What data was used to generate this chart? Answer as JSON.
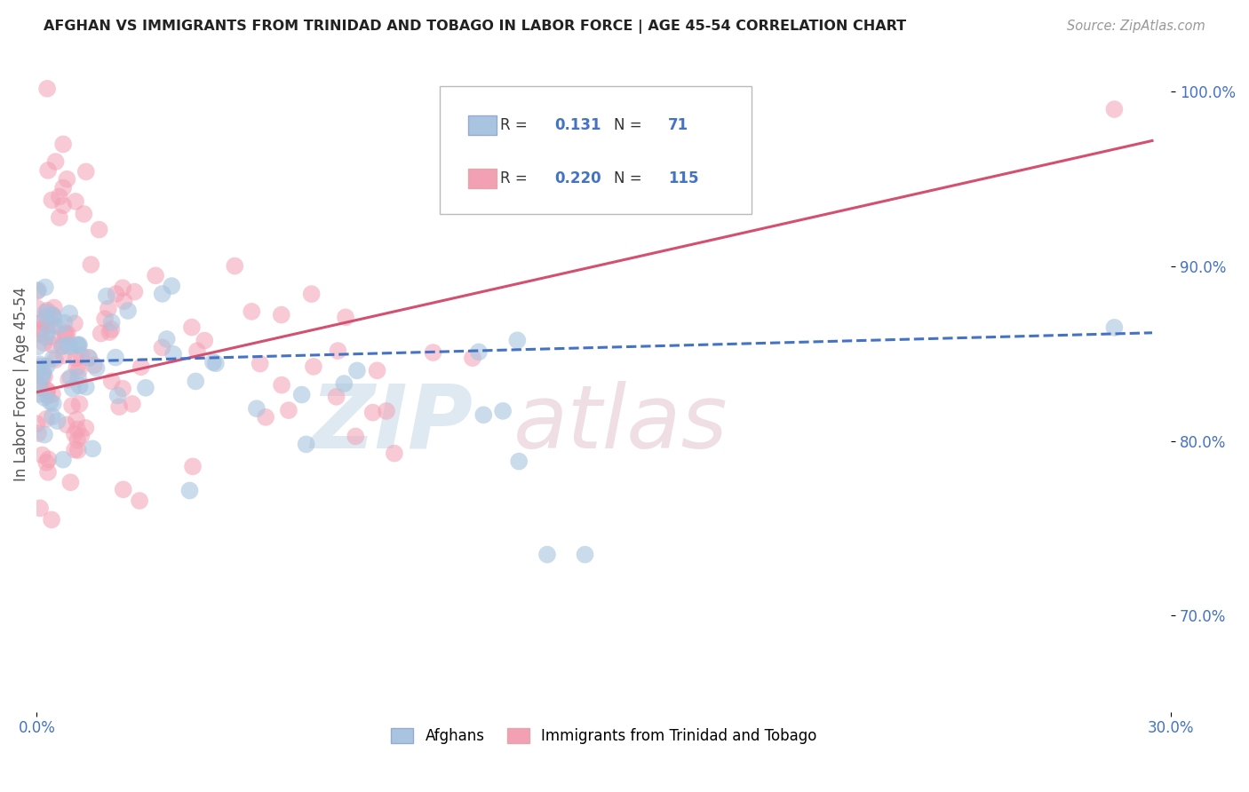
{
  "title": "AFGHAN VS IMMIGRANTS FROM TRINIDAD AND TOBAGO IN LABOR FORCE | AGE 45-54 CORRELATION CHART",
  "source": "Source: ZipAtlas.com",
  "ylabel": "In Labor Force | Age 45-54",
  "xlim": [
    0.0,
    0.3
  ],
  "ylim": [
    0.645,
    1.02
  ],
  "ytick_positions": [
    0.7,
    0.8,
    0.9,
    1.0
  ],
  "ytick_labels": [
    "70.0%",
    "80.0%",
    "90.0%",
    "100.0%"
  ],
  "blue_color": "#a8c4e0",
  "pink_color": "#f4a0b4",
  "blue_line_color": "#4472c4",
  "pink_line_color": "#d45070",
  "tick_label_color": "#4472c4",
  "grid_color": "#e0e0e0",
  "title_color": "#222222",
  "source_color": "#999999"
}
